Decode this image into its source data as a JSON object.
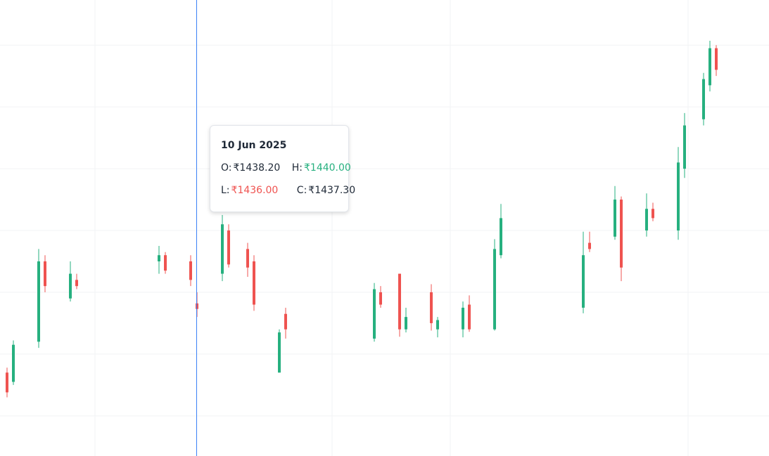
{
  "chart_data": {
    "type": "candlestick",
    "up_color": "#26b07f",
    "down_color": "#ef5350",
    "ylim": [
      1413.5,
      1487.3
    ],
    "yticks": [
      1420,
      1430,
      1440,
      1450,
      1460,
      1470,
      1480
    ],
    "grid": true,
    "ohlc": [
      [
        1427,
        1427.8,
        1423,
        1423.8
      ],
      [
        1425.5,
        1432.2,
        1425,
        1431.5
      ],
      null,
      null,
      null,
      [
        1432,
        1447,
        1431,
        1445
      ],
      [
        1445,
        1446,
        1440,
        1441
      ],
      null,
      null,
      null,
      [
        1439,
        1445,
        1438.5,
        1443
      ],
      [
        1442,
        1443,
        1440.5,
        1441
      ],
      null,
      null,
      null,
      null,
      null,
      null,
      null,
      null,
      null,
      null,
      null,
      null,
      [
        1445,
        1447.5,
        1443,
        1446
      ],
      [
        1446,
        1446.5,
        1443,
        1443.5
      ],
      null,
      null,
      null,
      [
        1445,
        1446,
        1441,
        1442
      ],
      [
        1438.2,
        1440,
        1436,
        1437.3
      ],
      null,
      null,
      null,
      [
        1443,
        1452.5,
        1441.8,
        1451
      ],
      [
        1450,
        1451,
        1444,
        1444.5
      ],
      null,
      null,
      [
        1447,
        1448,
        1442.5,
        1444
      ],
      [
        1445,
        1446,
        1437,
        1438
      ],
      null,
      null,
      null,
      [
        1427,
        1434,
        1427,
        1433.5
      ],
      [
        1436.5,
        1437.5,
        1432.5,
        1434
      ],
      null,
      null,
      null,
      null,
      null,
      null,
      null,
      null,
      null,
      null,
      null,
      null,
      null,
      [
        1432.5,
        1441.5,
        1432,
        1440.5
      ],
      [
        1440,
        1441,
        1437.5,
        1438
      ],
      null,
      null,
      [
        1443,
        1443,
        1432.8,
        1434
      ],
      [
        1434,
        1437.5,
        1433.5,
        1436
      ],
      null,
      null,
      null,
      [
        1440,
        1441.3,
        1433.8,
        1435
      ],
      [
        1434,
        1436,
        1432.7,
        1435.5
      ],
      null,
      null,
      null,
      [
        1434,
        1438.5,
        1432.7,
        1437.5
      ],
      [
        1438,
        1439.5,
        1433.6,
        1434
      ],
      null,
      null,
      null,
      [
        1434,
        1448.6,
        1433.8,
        1447
      ],
      [
        1446,
        1454.3,
        1445.5,
        1452
      ],
      null,
      null,
      null,
      null,
      null,
      null,
      null,
      null,
      null,
      null,
      null,
      null,
      [
        1437.5,
        1449.8,
        1436.6,
        1446
      ],
      [
        1448,
        1449.8,
        1446.5,
        1447
      ],
      null,
      null,
      null,
      [
        1449,
        1457.2,
        1448.5,
        1455
      ],
      [
        1455,
        1455.5,
        1441.8,
        1444
      ],
      null,
      null,
      null,
      [
        1450,
        1456,
        1449,
        1453.5
      ],
      [
        1453.5,
        1454.5,
        1451.5,
        1452
      ],
      null,
      null,
      null,
      [
        1450,
        1463.5,
        1448.5,
        1461
      ],
      [
        1460,
        1469,
        1458.5,
        1467
      ],
      null,
      null,
      [
        1468,
        1475.5,
        1467,
        1474.5
      ],
      [
        1473.5,
        1480.7,
        1472.5,
        1479.5
      ],
      [
        1479.5,
        1480,
        1475,
        1476
      ]
    ],
    "tooltip": {
      "date": "10 Jun 2025",
      "open": {
        "label": "O:",
        "value": "₹1438.20"
      },
      "high": {
        "label": "H:",
        "value": "₹1440.00"
      },
      "low": {
        "label": "L:",
        "value": "₹1436.00"
      },
      "close": {
        "label": "C:",
        "value": "₹1437.30"
      }
    }
  }
}
